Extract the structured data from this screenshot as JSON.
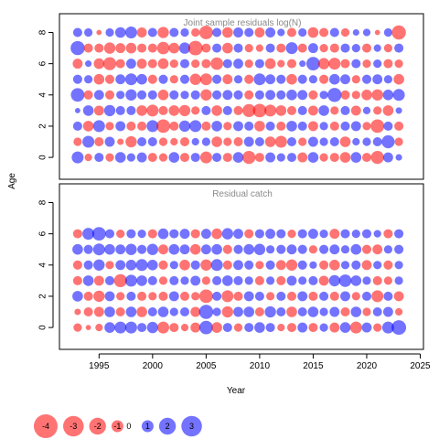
{
  "chart_data": {
    "type": "scatter",
    "subtype": "bubble",
    "xlabel": "Year",
    "ylabel": "Age",
    "x_ticks": [
      1995,
      2000,
      2005,
      2010,
      2015,
      2020,
      2025
    ],
    "y_ticks": [
      0,
      2,
      4,
      6,
      8
    ],
    "xlim": [
      1991.3,
      2025.3
    ],
    "colors": {
      "negative": "#ff0000",
      "positive": "#0000ff",
      "opacity": 0.55,
      "panel_title": "#8a8a8a"
    },
    "legend": {
      "placement": "bottom-left",
      "items": [
        {
          "label": "-4",
          "value": -4
        },
        {
          "label": "-3",
          "value": -3
        },
        {
          "label": "-2",
          "value": -2
        },
        {
          "label": "-1",
          "value": -1
        },
        {
          "label": "0",
          "value": 0
        },
        {
          "label": "1",
          "value": 1
        },
        {
          "label": "2",
          "value": 2
        },
        {
          "label": "3",
          "value": 3
        }
      ]
    },
    "panels": [
      {
        "title": "Joint sample residuals log(N)",
        "ylim": [
          -1.4,
          9.2
        ],
        "years": [
          1993,
          1994,
          1995,
          1996,
          1997,
          1998,
          1999,
          2000,
          2001,
          2002,
          2003,
          2004,
          2005,
          2006,
          2007,
          2008,
          2009,
          2010,
          2011,
          2012,
          2013,
          2014,
          2015,
          2016,
          2017,
          2018,
          2019,
          2020,
          2021,
          2022,
          2023
        ],
        "ages": [
          0,
          1,
          2,
          3,
          4,
          5,
          6,
          7,
          8
        ],
        "residuals": [
          [
            1.0,
            -0.4,
            0.6,
            -0.5,
            0.8,
            0.5,
            0.7,
            -0.6,
            -0.5,
            0.8,
            -0.6,
            0.6,
            -1.0,
            0.6,
            -0.6,
            0.8,
            -1.2,
            -0.6,
            0.7,
            0.5,
            0.6,
            -0.7,
            0.8,
            -0.5,
            -0.6,
            -0.8,
            0.8,
            -0.6,
            -1.2,
            0.7,
            0.3
          ],
          [
            -0.5,
            1.0,
            -0.6,
            0.7,
            -0.3,
            -0.9,
            0.6,
            0.6,
            -0.5,
            -0.4,
            -0.6,
            0.4,
            0.5,
            -0.8,
            -0.5,
            -0.6,
            0.7,
            0.6,
            -0.8,
            -1.0,
            0.6,
            -0.5,
            0.7,
            0.5,
            0.6,
            -0.8,
            0.4,
            0.5,
            0.6,
            1.2,
            -0.5
          ],
          [
            0.6,
            -0.8,
            1.0,
            -0.5,
            0.7,
            -0.6,
            -0.6,
            1.0,
            -1.3,
            -0.6,
            0.9,
            1.0,
            -0.6,
            0.8,
            -0.5,
            0.7,
            0.6,
            -0.8,
            0.6,
            -0.6,
            0.8,
            0.6,
            -0.7,
            0.5,
            -0.6,
            0.6,
            0.7,
            -0.5,
            -1.3,
            0.6,
            -0.6
          ],
          [
            0.2,
            0.8,
            -0.7,
            0.9,
            0.6,
            0.6,
            -0.8,
            -1.0,
            -0.6,
            -0.8,
            -0.9,
            -0.5,
            0.6,
            -0.8,
            0.6,
            -0.6,
            -1.2,
            -1.3,
            -1.0,
            -0.8,
            -0.6,
            0.6,
            -0.7,
            0.8,
            -0.5,
            0.6,
            -0.7,
            0.4,
            -0.5,
            -0.8,
            0.3
          ],
          [
            1.3,
            -0.6,
            0.7,
            -0.6,
            0.5,
            0.9,
            0.6,
            0.6,
            -0.8,
            0.6,
            0.5,
            0.6,
            -0.9,
            0.6,
            0.7,
            0.6,
            -0.6,
            0.6,
            0.7,
            0.6,
            0.8,
            0.7,
            -0.6,
            0.5,
            1.4,
            -0.6,
            -0.5,
            -0.8,
            -0.9,
            0.8,
            1.0
          ],
          [
            0.6,
            0.5,
            -0.8,
            -0.6,
            0.7,
            1.0,
            0.8,
            -0.6,
            0.6,
            -0.5,
            0.6,
            -0.9,
            -1.0,
            0.6,
            -0.7,
            0.5,
            -0.6,
            1.0,
            0.7,
            0.6,
            -0.8,
            0.6,
            0.5,
            -0.6,
            0.8,
            0.7,
            -0.5,
            0.6,
            0.7,
            0.5,
            -0.8
          ],
          [
            -0.7,
            0.3,
            -0.8,
            -1.2,
            -0.6,
            0.7,
            -0.7,
            -0.6,
            -0.8,
            -0.5,
            0.6,
            -0.5,
            -0.6,
            -1.1,
            0.6,
            0.7,
            -0.5,
            0.6,
            -0.8,
            -0.4,
            -0.6,
            0.3,
            1.3,
            -0.9,
            -1.0,
            -0.6,
            0.6,
            -0.5,
            0.5,
            -0.6,
            -0.5
          ],
          [
            1.4,
            -0.6,
            -0.6,
            -0.9,
            -0.7,
            -0.8,
            -0.6,
            -0.6,
            -1.1,
            -0.8,
            0.9,
            -1.5,
            -0.6,
            0.6,
            -0.8,
            0.6,
            -0.5,
            -0.4,
            0.6,
            -0.6,
            1.0,
            -0.6,
            0.7,
            -0.5,
            -0.6,
            0.6,
            0.5,
            -0.6,
            0.4,
            -0.5,
            0.6
          ],
          [
            0.6,
            0.5,
            -0.2,
            0.5,
            0.8,
            1.0,
            -0.7,
            0.6,
            -0.9,
            0.6,
            0.5,
            -0.5,
            -1.3,
            0.6,
            -0.8,
            0.7,
            0.6,
            -0.7,
            0.7,
            0.4,
            -0.6,
            0.5,
            -0.8,
            -0.6,
            0.6,
            -0.5,
            0.3,
            0.4,
            -0.2,
            0.5,
            -1.4
          ]
        ]
      },
      {
        "title": "Residual catch",
        "ylim": [
          -1.4,
          9.2
        ],
        "years": [
          1993,
          1994,
          1995,
          1996,
          1997,
          1998,
          1999,
          2000,
          2001,
          2002,
          2003,
          2004,
          2005,
          2006,
          2007,
          2008,
          2009,
          2010,
          2011,
          2012,
          2013,
          2014,
          2015,
          2016,
          2017,
          2018,
          2019,
          2020,
          2021,
          2022,
          2023
        ],
        "ages": [
          0,
          1,
          2,
          3,
          4,
          5,
          6
        ],
        "residuals": [
          [
            -0.5,
            -0.2,
            -0.4,
            0.8,
            1.0,
            1.0,
            0.6,
            0.9,
            -1.0,
            -0.6,
            -0.4,
            -0.7,
            1.3,
            -0.8,
            0.6,
            -0.5,
            0.6,
            0.8,
            0.6,
            -0.4,
            -0.6,
            0.7,
            -0.6,
            0.5,
            -0.7,
            0.8,
            -1.0,
            0.7,
            -0.5,
            1.0,
            1.5
          ],
          [
            -0.3,
            -0.6,
            -0.7,
            0.8,
            -0.6,
            0.8,
            -0.8,
            0.6,
            0.8,
            0.5,
            0.6,
            -0.7,
            1.4,
            0.5,
            -0.9,
            0.7,
            0.8,
            -0.6,
            0.9,
            0.6,
            -0.8,
            0.6,
            0.8,
            0.5,
            0.7,
            -0.6,
            0.8,
            -0.5,
            0.6,
            0.7,
            -0.4
          ],
          [
            0.8,
            -0.6,
            -0.9,
            0.7,
            -0.5,
            0.6,
            -0.6,
            -0.5,
            -0.6,
            0.7,
            -0.6,
            -0.5,
            -1.3,
            0.6,
            -1.0,
            -0.6,
            0.7,
            0.6,
            -0.5,
            0.6,
            -0.6,
            0.7,
            -0.6,
            0.6,
            -0.6,
            0.7,
            -0.5,
            0.6,
            -1.0,
            0.6,
            -0.7
          ],
          [
            -0.6,
            0.8,
            -0.7,
            0.6,
            -1.2,
            1.0,
            0.8,
            0.6,
            -0.5,
            0.6,
            0.5,
            0.7,
            -0.5,
            0.6,
            0.8,
            0.6,
            0.5,
            -0.6,
            0.5,
            -0.6,
            0.7,
            0.5,
            0.6,
            -0.7,
            0.9,
            1.1,
            0.8,
            0.5,
            -0.6,
            -0.5,
            0.5
          ],
          [
            -0.6,
            0.6,
            0.9,
            -0.5,
            0.7,
            0.8,
            1.0,
            0.8,
            -0.6,
            0.5,
            -0.8,
            0.6,
            -0.9,
            1.0,
            -0.6,
            0.7,
            0.6,
            -0.5,
            0.6,
            -0.7,
            -0.9,
            0.6,
            0.4,
            -0.6,
            -0.8,
            0.5,
            0.6,
            -0.7,
            0.5,
            -0.6,
            0.5
          ],
          [
            0.8,
            0.6,
            1.0,
            0.8,
            0.7,
            0.9,
            0.6,
            0.9,
            -0.7,
            0.8,
            0.7,
            -0.8,
            0.7,
            0.8,
            -0.6,
            0.6,
            0.8,
            0.9,
            0.5,
            0.6,
            0.7,
            0.6,
            -0.5,
            0.6,
            0.7,
            0.5,
            0.8,
            -0.6,
            -0.7,
            0.5,
            0.6
          ],
          [
            -0.6,
            1.0,
            1.3,
            0.6,
            -0.5,
            0.6,
            0.5,
            -0.6,
            0.8,
            0.6,
            0.7,
            -0.6,
            0.7,
            -0.8,
            0.9,
            0.7,
            -0.6,
            0.6,
            0.7,
            0.6,
            -0.5,
            0.6,
            0.7,
            0.5,
            -0.7,
            0.6,
            0.5,
            0.6,
            0.4,
            -0.6,
            0.6
          ]
        ]
      }
    ]
  }
}
